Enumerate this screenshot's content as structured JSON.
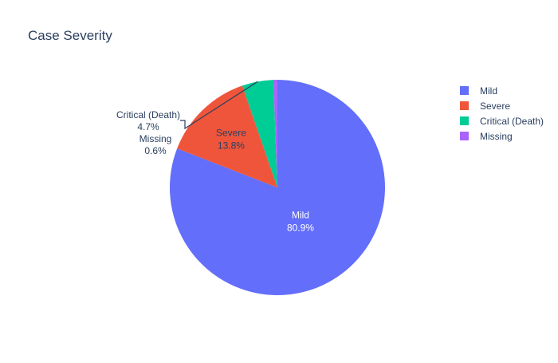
{
  "chart_data": {
    "type": "pie",
    "title": "Case Severity",
    "slices": [
      {
        "label": "Mild",
        "value": 80.9,
        "text": "80.9%",
        "color": "#636efa",
        "label_position": "inside"
      },
      {
        "label": "Severe",
        "value": 13.8,
        "text": "13.8%",
        "color": "#ef553b",
        "label_position": "inside"
      },
      {
        "label": "Critical (Death)",
        "value": 4.7,
        "text": "4.7%",
        "color": "#00cc96",
        "label_position": "outside"
      },
      {
        "label": "Missing",
        "value": 0.6,
        "text": "0.6%",
        "color": "#ab63fa",
        "label_position": "outside"
      }
    ],
    "legend": {
      "placement": "top-right",
      "entries": [
        "Mild",
        "Severe",
        "Critical (Death)",
        "Missing"
      ]
    },
    "direction": "clockwise",
    "start": "top"
  }
}
